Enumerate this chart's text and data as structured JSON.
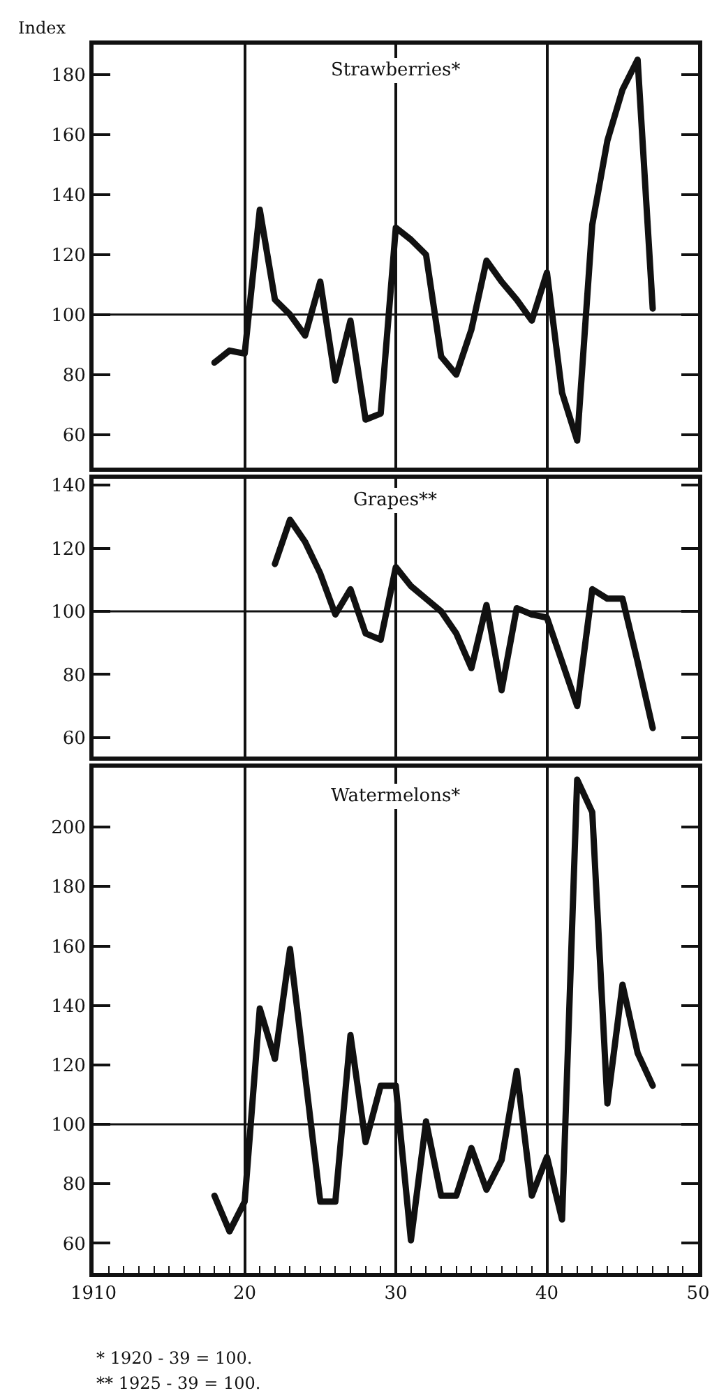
{
  "chart_data": [
    {
      "type": "line",
      "title": "Strawberries*",
      "ylabel": "Index",
      "x": [
        1918,
        1919,
        1920,
        1921,
        1922,
        1923,
        1924,
        1925,
        1926,
        1927,
        1928,
        1929,
        1930,
        1931,
        1932,
        1933,
        1934,
        1935,
        1936,
        1937,
        1938,
        1939,
        1940,
        1941,
        1942,
        1943,
        1944,
        1945,
        1946,
        1947
      ],
      "series": [
        {
          "color": "#111111",
          "values": [
            84,
            88,
            87,
            135,
            105,
            100,
            93,
            111,
            78,
            98,
            65,
            67,
            129,
            125,
            120,
            86,
            80,
            95,
            118,
            111,
            105,
            98,
            114,
            74,
            58,
            130,
            158,
            175,
            185,
            102
          ]
        }
      ],
      "xlim": [
        1910,
        1950
      ],
      "xticks": [
        {
          "value": 1910,
          "label": null
        },
        {
          "value": 1920,
          "label": null
        },
        {
          "value": 1930,
          "label": null
        },
        {
          "value": 1940,
          "label": null
        },
        {
          "value": 1950,
          "label": null
        }
      ],
      "ylim": [
        49,
        190
      ],
      "yticks": [
        60,
        80,
        100,
        120,
        140,
        160,
        180
      ],
      "grid": "x",
      "tick_labels": "y",
      "marker": "none",
      "line_style": "solid",
      "ref_lines": [
        {
          "axis": "y",
          "value": 100,
          "color": "#111111"
        }
      ]
    },
    {
      "type": "line",
      "title": "Grapes**",
      "x": [
        1922,
        1923,
        1924,
        1925,
        1926,
        1927,
        1928,
        1929,
        1930,
        1931,
        1932,
        1933,
        1934,
        1935,
        1936,
        1937,
        1938,
        1939,
        1940,
        1941,
        1942,
        1943,
        1944,
        1945,
        1946,
        1947
      ],
      "series": [
        {
          "color": "#111111",
          "values": [
            115,
            129,
            122,
            112,
            99,
            107,
            93,
            91,
            114,
            108,
            104,
            100,
            93,
            82,
            102,
            75,
            101,
            99,
            98,
            84,
            70,
            107,
            104,
            104,
            84,
            63
          ]
        }
      ],
      "xlim": [
        1910,
        1950
      ],
      "xticks": [
        {
          "value": 1910,
          "label": null
        },
        {
          "value": 1920,
          "label": null
        },
        {
          "value": 1930,
          "label": null
        },
        {
          "value": 1940,
          "label": null
        },
        {
          "value": 1950,
          "label": null
        }
      ],
      "ylim": [
        54,
        142
      ],
      "yticks": [
        60,
        80,
        100,
        120,
        140
      ],
      "grid": "x",
      "tick_labels": "y",
      "marker": "none",
      "line_style": "solid",
      "ref_lines": [
        {
          "axis": "y",
          "value": 100,
          "color": "#111111"
        }
      ]
    },
    {
      "type": "line",
      "title": "Watermelons*",
      "x": [
        1918,
        1919,
        1920,
        1921,
        1922,
        1923,
        1925,
        1926,
        1927,
        1928,
        1929,
        1930,
        1931,
        1932,
        1933,
        1934,
        1935,
        1936,
        1937,
        1938,
        1939,
        1940,
        1941,
        1942,
        1943,
        1944,
        1945,
        1946,
        1947
      ],
      "series": [
        {
          "color": "#111111",
          "values": [
            76,
            64,
            74,
            139,
            122,
            159,
            74,
            74,
            130,
            94,
            113,
            113,
            61,
            101,
            76,
            76,
            92,
            78,
            88,
            118,
            76,
            89,
            68,
            216,
            205,
            107,
            147,
            124,
            113
          ]
        }
      ],
      "xlim": [
        1910,
        1950
      ],
      "xticks": [
        {
          "value": 1910,
          "label": "1910"
        },
        {
          "value": 1920,
          "label": "20"
        },
        {
          "value": 1930,
          "label": "30"
        },
        {
          "value": 1940,
          "label": "40"
        },
        {
          "value": 1950,
          "label": "50"
        }
      ],
      "ylim": [
        50,
        220
      ],
      "yticks": [
        60,
        80,
        100,
        120,
        140,
        160,
        180,
        200
      ],
      "grid": "x",
      "marker": "none",
      "line_style": "solid",
      "ref_lines": [
        {
          "axis": "y",
          "value": 100,
          "color": "#111111"
        }
      ],
      "annotations": [
        "* 1920 - 39 = 100.",
        "** 1925 - 39 = 100."
      ]
    }
  ]
}
